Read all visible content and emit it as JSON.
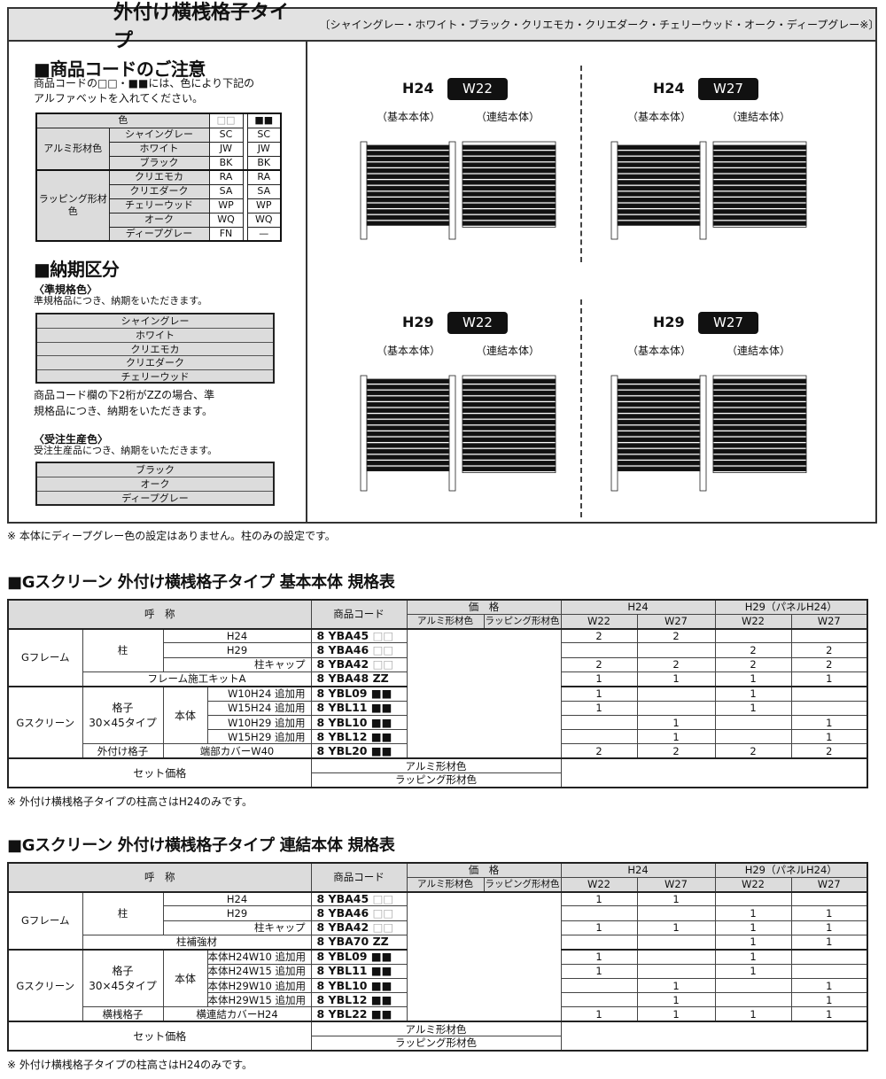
{
  "title": {
    "main": "外付け横桟格子タイプ",
    "colors": "〔シャイングレー・ホワイト・ブラック・クリエモカ・クリエダーク・チェリーウッド・オーク・ディープグレー※〕"
  },
  "code_notice": {
    "heading": "■商品コードのご注意",
    "text1": "商品コードの□□・■■には、色により下記の",
    "text2": "アルファベットを入れてください。",
    "table": {
      "header": {
        "color": "色",
        "white_mark": "□□",
        "black_mark": "■■"
      },
      "groups": [
        {
          "name": "アルミ形材色",
          "rows": [
            [
              "シャイングレー",
              "SC",
              "SC"
            ],
            [
              "ホワイト",
              "JW",
              "JW"
            ],
            [
              "ブラック",
              "BK",
              "BK"
            ]
          ]
        },
        {
          "name": "ラッピング形材色",
          "rows": [
            [
              "クリエモカ",
              "RA",
              "RA"
            ],
            [
              "クリエダーク",
              "SA",
              "SA"
            ],
            [
              "チェリーウッド",
              "WP",
              "WP"
            ],
            [
              "オーク",
              "WQ",
              "WQ"
            ],
            [
              "ディープグレー",
              "FN",
              "—"
            ]
          ]
        }
      ]
    }
  },
  "delivery": {
    "heading": "■納期区分",
    "standard": {
      "title": "〈準規格色〉",
      "desc": "準規格品につき、納期をいただきます。",
      "items": [
        "シャイングレー",
        "ホワイト",
        "クリエモカ",
        "クリエダーク",
        "チェリーウッド"
      ]
    },
    "zz_note1": "商品コード欄の下2桁がZZの場合、準",
    "zz_note2": "規格品につき、納期をいただきます。",
    "order": {
      "title": "〈受注生産色〉",
      "desc": "受注生産品につき、納期をいただきます。",
      "items": [
        "ブラック",
        "オーク",
        "ディープグレー"
      ]
    }
  },
  "diagrams": [
    {
      "height": "H24",
      "width": "W22",
      "basic": "（基本本体）",
      "linked": "（連結本体）"
    },
    {
      "height": "H24",
      "width": "W27",
      "basic": "（基本本体）",
      "linked": "（連結本体）"
    },
    {
      "height": "H29",
      "width": "W22",
      "basic": "（基本本体）",
      "linked": "（連結本体）"
    },
    {
      "height": "H29",
      "width": "W27",
      "basic": "（基本本体）",
      "linked": "（連結本体）"
    }
  ],
  "main_note": "※ 本体にディープグレー色の設定はありません。柱のみの設定です。",
  "spec_tables": [
    {
      "heading": "■Gスクリーン 外付け横桟格子タイプ 基本本体 規格表",
      "header": {
        "name": "呼　称",
        "code": "商品コード",
        "price": "価　格",
        "alum": "アルミ形材色",
        "wrap": "ラッピング形材色",
        "h24": "H24",
        "h29": "H29（パネルH24）",
        "w22": "W22",
        "w27": "W27"
      },
      "rows": [
        {
          "labels": [
            "Gフレーム",
            "柱",
            "H24"
          ],
          "code": "8 YBA45",
          "mark": "□□",
          "qty": [
            "2",
            "2",
            "",
            ""
          ]
        },
        {
          "labels": [
            "H29"
          ],
          "code": "8 YBA46",
          "mark": "□□",
          "qty": [
            "",
            "",
            "2",
            "2"
          ]
        },
        {
          "labels": [
            "柱キャップ"
          ],
          "code": "8 YBA42",
          "mark": "□□",
          "qty": [
            "2",
            "2",
            "2",
            "2"
          ]
        },
        {
          "labels": [
            "フレーム施工キットA"
          ],
          "code": "8 YBA48",
          "mark": "ZZ",
          "qty": [
            "1",
            "1",
            "1",
            "1"
          ]
        },
        {
          "labels": [
            "Gスクリーン",
            "格子\n30×45タイプ",
            "本体",
            "W10H24 追加用"
          ],
          "code": "8 YBL09",
          "mark": "■■",
          "qty": [
            "1",
            "",
            "1",
            ""
          ]
        },
        {
          "labels": [
            "W15H24 追加用"
          ],
          "code": "8 YBL11",
          "mark": "■■",
          "qty": [
            "1",
            "",
            "1",
            ""
          ]
        },
        {
          "labels": [
            "W10H29 追加用"
          ],
          "code": "8 YBL10",
          "mark": "■■",
          "qty": [
            "",
            "1",
            "",
            "1"
          ]
        },
        {
          "labels": [
            "W15H29 追加用"
          ],
          "code": "8 YBL12",
          "mark": "■■",
          "qty": [
            "",
            "1",
            "",
            "1"
          ]
        },
        {
          "labels": [
            "外付け格子",
            "端部カバーW40"
          ],
          "code": "8 YBL20",
          "mark": "■■",
          "qty": [
            "2",
            "2",
            "2",
            "2"
          ]
        }
      ],
      "set_price": {
        "label": "セット価格",
        "alum": "アルミ形材色",
        "wrap": "ラッピング形材色"
      },
      "note": "※ 外付け横桟格子タイプの柱高さはH24のみです。"
    },
    {
      "heading": "■Gスクリーン 外付け横桟格子タイプ 連結本体 規格表",
      "header": {
        "name": "呼　称",
        "code": "商品コード",
        "price": "価　格",
        "alum": "アルミ形材色",
        "wrap": "ラッピング形材色",
        "h24": "H24",
        "h29": "H29（パネルH24）",
        "w22": "W22",
        "w27": "W27"
      },
      "rows": [
        {
          "labels": [
            "Gフレーム",
            "柱",
            "H24"
          ],
          "code": "8 YBA45",
          "mark": "□□",
          "qty": [
            "1",
            "1",
            "",
            ""
          ]
        },
        {
          "labels": [
            "H29"
          ],
          "code": "8 YBA46",
          "mark": "□□",
          "qty": [
            "",
            "",
            "1",
            "1"
          ]
        },
        {
          "labels": [
            "柱キャップ"
          ],
          "code": "8 YBA42",
          "mark": "□□",
          "qty": [
            "1",
            "1",
            "1",
            "1"
          ]
        },
        {
          "labels": [
            "柱補強材"
          ],
          "code": "8 YBA70",
          "mark": "ZZ",
          "qty": [
            "",
            "",
            "1",
            "1"
          ]
        },
        {
          "labels": [
            "Gスクリーン",
            "格子\n30×45タイプ",
            "本体",
            "本体H24W10 追加用"
          ],
          "code": "8 YBL09",
          "mark": "■■",
          "qty": [
            "1",
            "",
            "1",
            ""
          ]
        },
        {
          "labels": [
            "本体H24W15 追加用"
          ],
          "code": "8 YBL11",
          "mark": "■■",
          "qty": [
            "1",
            "",
            "1",
            ""
          ]
        },
        {
          "labels": [
            "本体H29W10 追加用"
          ],
          "code": "8 YBL10",
          "mark": "■■",
          "qty": [
            "",
            "1",
            "",
            "1"
          ]
        },
        {
          "labels": [
            "本体H29W15 追加用"
          ],
          "code": "8 YBL12",
          "mark": "■■",
          "qty": [
            "",
            "1",
            "",
            "1"
          ]
        },
        {
          "labels": [
            "横桟格子",
            "横連結カバーH24"
          ],
          "code": "8 YBL22",
          "mark": "■■",
          "qty": [
            "1",
            "1",
            "1",
            "1"
          ]
        }
      ],
      "set_price": {
        "label": "セット価格",
        "alum": "アルミ形材色",
        "wrap": "ラッピング形材色"
      },
      "note": "※ 外付け横桟格子タイプの柱高さはH24のみです。"
    }
  ]
}
